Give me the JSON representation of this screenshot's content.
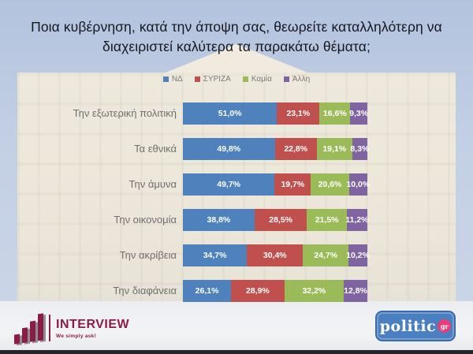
{
  "title": "Ποια κυβέρνηση, κατά την άποψη σας, θεωρείτε καταλληλότερη να διαχειριστεί καλύτερα τα παρακάτω θέματα;",
  "chart_data": {
    "type": "bar",
    "orientation": "horizontal-stacked",
    "title": "Ποια κυβέρνηση, κατά την άποψη σας, θεωρείτε καταλληλότερη να διαχειριστεί καλύτερα τα παρακάτω θέματα;",
    "categories": [
      "Την εξωτερική πολιτική",
      "Τα εθνικά",
      "Την άμυνα",
      "Την οικονομία",
      "Την ακρίβεια",
      "Την διαφάνεια"
    ],
    "series": [
      {
        "name": "ΝΔ",
        "color": "#4F81BD",
        "values": [
          51.0,
          49.8,
          49.7,
          38.8,
          34.7,
          26.1
        ]
      },
      {
        "name": "ΣΥΡΙΖΑ",
        "color": "#C0504D",
        "values": [
          23.1,
          22.8,
          19.7,
          28.5,
          30.4,
          28.9
        ]
      },
      {
        "name": "Καμία",
        "color": "#9BBB59",
        "values": [
          16.6,
          19.1,
          20.6,
          21.5,
          24.7,
          32.2
        ]
      },
      {
        "name": "Άλλη",
        "color": "#8064A2",
        "values": [
          9.3,
          8.3,
          10.0,
          11.2,
          10.2,
          12.8
        ]
      }
    ],
    "xlim": [
      0,
      100
    ],
    "value_format": "percent-comma-1dp",
    "legend_position": "top",
    "grid": false
  },
  "footer": {
    "interview_logo": {
      "name": "INTERVIEW",
      "tagline": "We simply ask!"
    },
    "politic_logo": {
      "name": "politic",
      "suffix": "gr"
    }
  }
}
